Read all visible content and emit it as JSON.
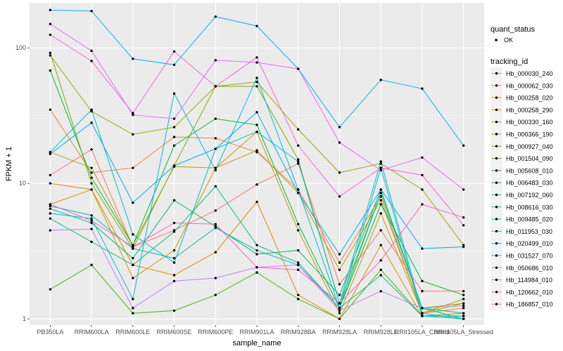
{
  "chart_data": {
    "type": "line",
    "xlabel": "sample_name",
    "ylabel": "FPKM + 1",
    "y_scale": "log10",
    "ylim": [
      0.9,
      215
    ],
    "y_ticks": [
      {
        "value": 1,
        "label": "1"
      },
      {
        "value": 10,
        "label": "10"
      },
      {
        "value": 100,
        "label": "100"
      }
    ],
    "grid": true,
    "panel_background": "#ebebeb",
    "categories": [
      "PB350LA",
      "RRIM600LA",
      "RRIM600LE",
      "RRIM600SE",
      "RRIM600PE",
      "RRIM901LA",
      "RRIM928BA",
      "RRIM928LA",
      "RRIM928LE",
      "RRII105LA_Control",
      "RRII105LA_Stressed"
    ],
    "legend_placement": "right",
    "shape_legend": {
      "title": "quant_status",
      "entries": [
        "OK"
      ]
    },
    "color_legend_title": "tracking_id",
    "series": [
      {
        "name": "Hb_000030_240",
        "color": "#F8766D",
        "values": [
          11.5,
          17.8,
          3.4,
          4.5,
          6.3,
          9.8,
          14.0,
          1.8,
          4.5,
          1.6,
          1.6
        ]
      },
      {
        "name": "Hb_000062_030",
        "color": "#EE8044",
        "values": [
          35,
          12,
          13,
          22,
          21.5,
          17,
          9,
          2.6,
          8,
          1.1,
          1.2
        ]
      },
      {
        "name": "Hb_000258_020",
        "color": "#DE8C00",
        "values": [
          10,
          9,
          2.5,
          2.1,
          3.1,
          7.3,
          1.5,
          1.0,
          3.5,
          1.05,
          1.1
        ]
      },
      {
        "name": "Hb_000258_290",
        "color": "#CD9600",
        "values": [
          7,
          9,
          2.0,
          3.2,
          13,
          24,
          4.5,
          1.1,
          6,
          1.1,
          1.3
        ]
      },
      {
        "name": "Hb_000330_160",
        "color": "#B79F00",
        "values": [
          17,
          13,
          3.5,
          13.3,
          13,
          17.5,
          8.5,
          2.3,
          7.5,
          1.1,
          1.4
        ]
      },
      {
        "name": "Hb_000366_190",
        "color": "#9DA700",
        "values": [
          88,
          34,
          23,
          26,
          52,
          56,
          25,
          12,
          14,
          9,
          3.5
        ]
      },
      {
        "name": "Hb_000927_040",
        "color": "#7CAE00",
        "values": [
          92,
          10,
          3.3,
          13.5,
          52,
          52,
          15,
          1.3,
          8.5,
          1.2,
          1.3
        ]
      },
      {
        "name": "Hb_001504_090",
        "color": "#49B500",
        "values": [
          1.65,
          2.5,
          1.1,
          1.15,
          1.5,
          2.2,
          1.4,
          1.0,
          2.3,
          1.05,
          1.05
        ]
      },
      {
        "name": "Hb_005608_010",
        "color": "#00BA38",
        "values": [
          68,
          11,
          3.5,
          19,
          30,
          27,
          5,
          1.2,
          7,
          1.9,
          1.5
        ]
      },
      {
        "name": "Hb_006483_030",
        "color": "#00BE67",
        "values": [
          6.5,
          5.1,
          2.8,
          7.5,
          4.8,
          3.0,
          3.2,
          1.5,
          9,
          1.2,
          1.1
        ]
      },
      {
        "name": "Hb_007192_060",
        "color": "#00C08B",
        "values": [
          5.5,
          3.7,
          2.5,
          4.4,
          9.5,
          3.5,
          2.6,
          1.2,
          2.1,
          1.05,
          1.0
        ]
      },
      {
        "name": "Hb_008616_030",
        "color": "#00C1A9",
        "values": [
          6.8,
          5.8,
          3.3,
          2.8,
          4.7,
          3.2,
          2.5,
          1.2,
          8.5,
          1.2,
          1.0
        ]
      },
      {
        "name": "Hb_009485_020",
        "color": "#00BFC4",
        "values": [
          17,
          35,
          4.2,
          2.6,
          18,
          24,
          14.5,
          1.3,
          14.5,
          1.1,
          1.0
        ]
      },
      {
        "name": "Hb_011953_030",
        "color": "#00BBDB",
        "values": [
          6,
          5.5,
          1.4,
          46,
          12.5,
          60,
          9,
          1.2,
          13,
          1.05,
          1.05
        ]
      },
      {
        "name": "Hb_020499_010",
        "color": "#00B4EF",
        "values": [
          190,
          187,
          83,
          75,
          170,
          145,
          70,
          26,
          58,
          50,
          19
        ]
      },
      {
        "name": "Hb_031527_070",
        "color": "#00A9FF",
        "values": [
          16.5,
          28,
          7.2,
          13.5,
          18,
          33.5,
          8.5,
          3.0,
          9,
          3.3,
          3.4
        ]
      },
      {
        "name": "Hb_050686_010",
        "color": "#C77CFF",
        "values": [
          4.5,
          4.6,
          1.2,
          1.9,
          2.0,
          2.4,
          2.5,
          1.15,
          1.6,
          1.2,
          1.25
        ]
      },
      {
        "name": "Hb_114984_010",
        "color": "#E76BF3",
        "values": [
          150,
          95,
          32,
          30,
          81,
          78,
          70,
          20,
          12.5,
          15.5,
          9
        ]
      },
      {
        "name": "Hb_120662_010",
        "color": "#FA62DB",
        "values": [
          125,
          80,
          33,
          94,
          52,
          85,
          19,
          8,
          13,
          11.5,
          4.9
        ]
      },
      {
        "name": "Hb_186857_010",
        "color": "#FF61C3",
        "values": [
          7.0,
          5.3,
          3.4,
          5.1,
          5.0,
          2.4,
          2.3,
          1.3,
          2.7,
          7.0,
          5.6
        ]
      }
    ]
  }
}
